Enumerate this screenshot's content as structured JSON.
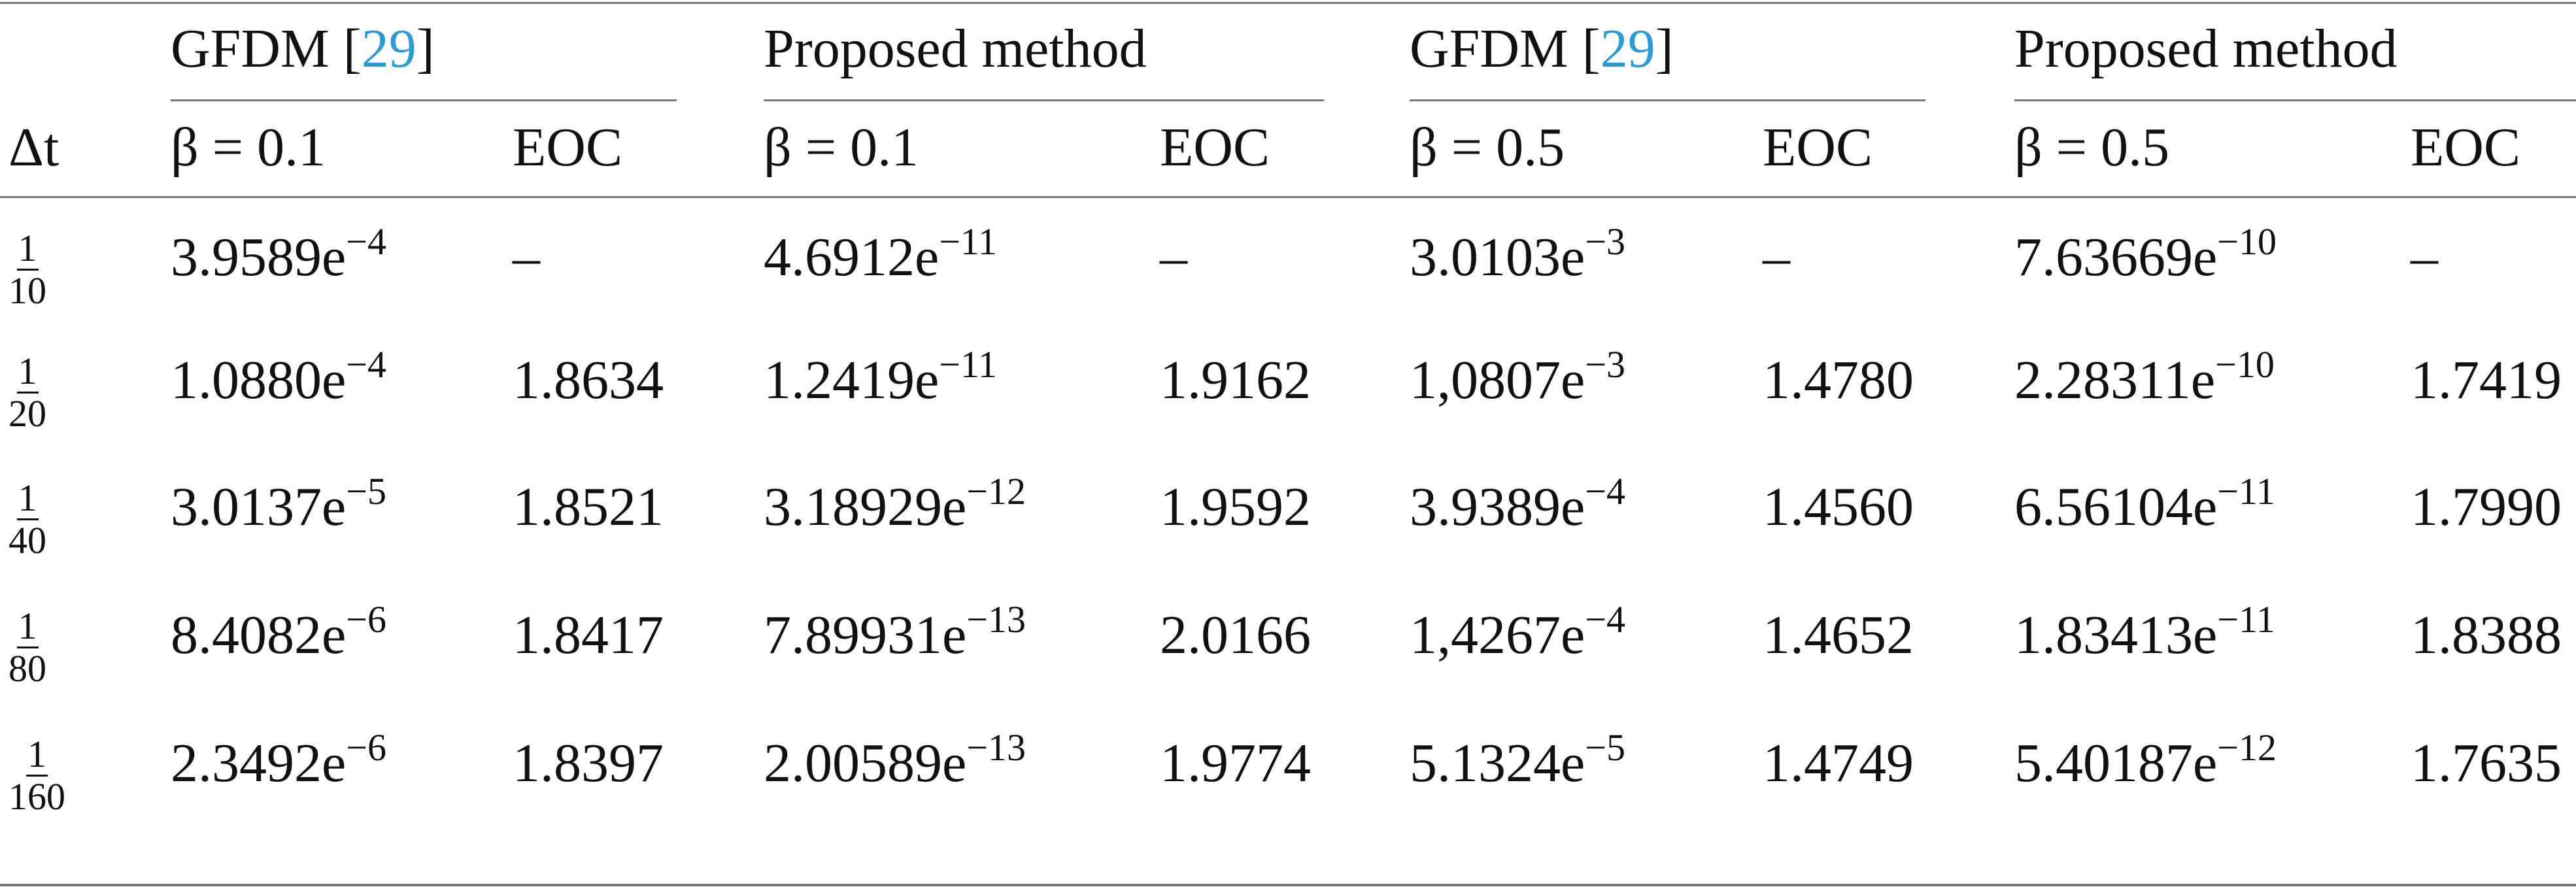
{
  "table": {
    "groups": [
      {
        "pre": "GFDM [",
        "ref": "29",
        "post": "]"
      },
      {
        "label": "Proposed method"
      },
      {
        "pre": "GFDM [",
        "ref": "29",
        "post": "]"
      },
      {
        "label": "Proposed method"
      }
    ],
    "columns": [
      "Δt",
      "β = 0.1",
      "EOC",
      "β = 0.1",
      "EOC",
      "β = 0.5",
      "EOC",
      "β = 0.5",
      "EOC"
    ],
    "rows": [
      {
        "dt": {
          "num": "1",
          "den": "10"
        },
        "cells": [
          {
            "base": "3.9589e",
            "exp": "−4"
          },
          "–",
          {
            "base": "4.6912e",
            "exp": "−11"
          },
          "–",
          {
            "base": "3.0103e",
            "exp": "−3"
          },
          "–",
          {
            "base": "7.63669e",
            "exp": "−10"
          },
          "–"
        ]
      },
      {
        "dt": {
          "num": "1",
          "den": "20"
        },
        "cells": [
          {
            "base": "1.0880e",
            "exp": "−4"
          },
          "1.8634",
          {
            "base": "1.2419e",
            "exp": "−11"
          },
          "1.9162",
          {
            "base": "1,0807e",
            "exp": "−3"
          },
          "1.4780",
          {
            "base": "2.28311e",
            "exp": "−10"
          },
          "1.7419"
        ]
      },
      {
        "dt": {
          "num": "1",
          "den": "40"
        },
        "cells": [
          {
            "base": "3.0137e",
            "exp": "−5"
          },
          "1.8521",
          {
            "base": "3.18929e",
            "exp": "−12"
          },
          "1.9592",
          {
            "base": "3.9389e",
            "exp": "−4"
          },
          "1.4560",
          {
            "base": "6.56104e",
            "exp": "−11"
          },
          "1.7990"
        ]
      },
      {
        "dt": {
          "num": "1",
          "den": "80"
        },
        "cells": [
          {
            "base": "8.4082e",
            "exp": "−6"
          },
          "1.8417",
          {
            "base": "7.89931e",
            "exp": "−13"
          },
          "2.0166",
          {
            "base": "1,4267e",
            "exp": "−4"
          },
          "1.4652",
          {
            "base": "1.83413e",
            "exp": "−11"
          },
          "1.8388"
        ]
      },
      {
        "dt": {
          "num": "1",
          "den": "160"
        },
        "cells": [
          {
            "base": "2.3492e",
            "exp": "−6"
          },
          "1.8397",
          {
            "base": "2.00589e",
            "exp": "−13"
          },
          "1.9774",
          {
            "base": "5.1324e",
            "exp": "−5"
          },
          "1.4749",
          {
            "base": "5.40187e",
            "exp": "−12"
          },
          "1.7635"
        ]
      }
    ]
  }
}
